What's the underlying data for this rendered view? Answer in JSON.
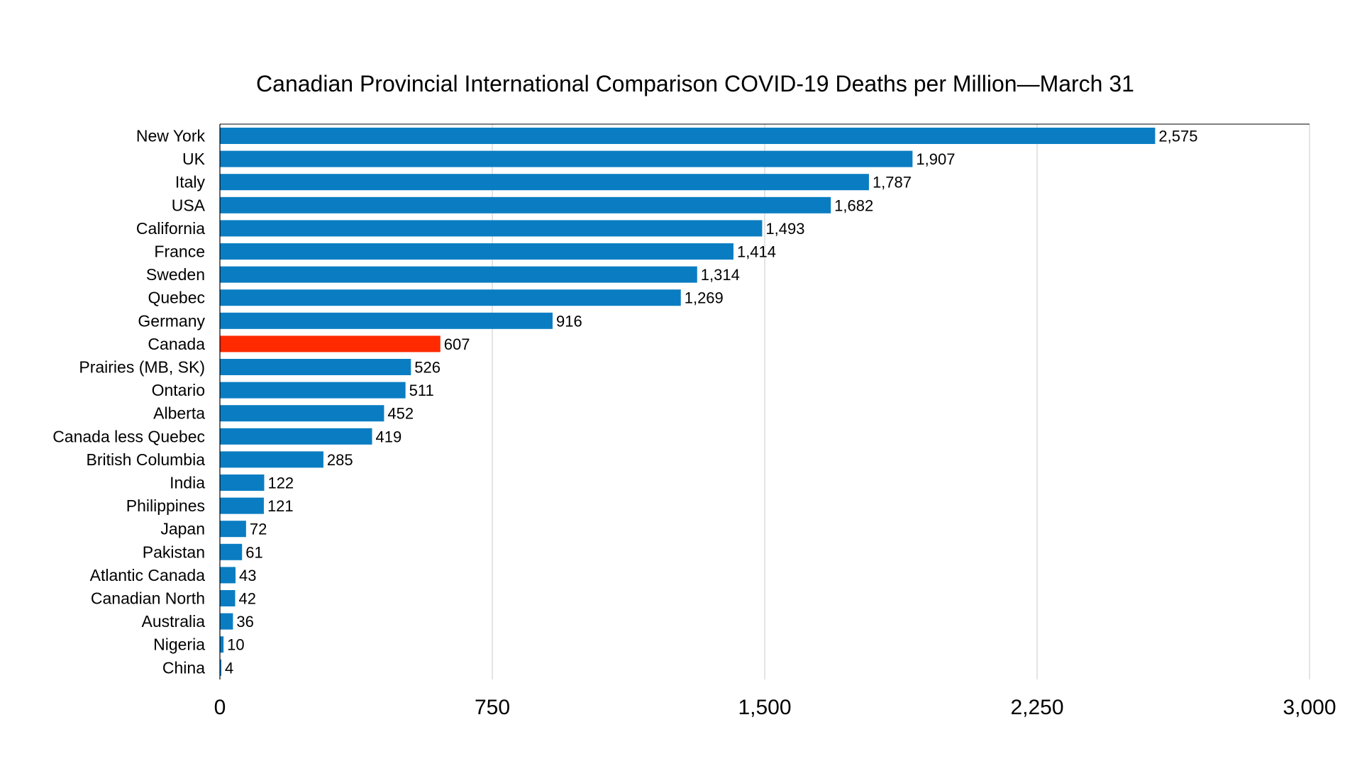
{
  "chart_data": {
    "type": "bar",
    "orientation": "horizontal",
    "title": "Canadian Provincial International Comparison COVID-19 Deaths per Million—March 31",
    "xlabel": "",
    "ylabel": "",
    "xlim": [
      0,
      3000
    ],
    "ticks": [
      "0",
      "750",
      "1,500",
      "2,250",
      "3,000"
    ],
    "tick_values": [
      0,
      750,
      1500,
      2250,
      3000
    ],
    "grid": "vertical",
    "colors": {
      "default": "#0a7dc2",
      "highlight": "#ff2a00",
      "grid": "#c8c8c8",
      "axis": "#000000"
    },
    "highlight_category": "Canada",
    "categories": [
      "New York",
      "UK",
      "Italy",
      "USA",
      "California",
      "France",
      "Sweden",
      "Quebec",
      "Germany",
      "Canada",
      "Prairies (MB, SK)",
      "Ontario",
      "Alberta",
      "Canada less Quebec",
      "British Columbia",
      "India",
      "Philippines",
      "Japan",
      "Pakistan",
      "Atlantic Canada",
      "Canadian North",
      "Australia",
      "Nigeria",
      "China"
    ],
    "values": [
      2575,
      1907,
      1787,
      1682,
      1493,
      1414,
      1314,
      1269,
      916,
      607,
      526,
      511,
      452,
      419,
      285,
      122,
      121,
      72,
      61,
      43,
      42,
      36,
      10,
      4
    ],
    "value_labels": [
      "2,575",
      "1,907",
      "1,787",
      "1,682",
      "1,493",
      "1,414",
      "1,314",
      "1,269",
      "916",
      "607",
      "526",
      "511",
      "452",
      "419",
      "285",
      "122",
      "121",
      "72",
      "61",
      "43",
      "42",
      "36",
      "10",
      "4"
    ]
  }
}
